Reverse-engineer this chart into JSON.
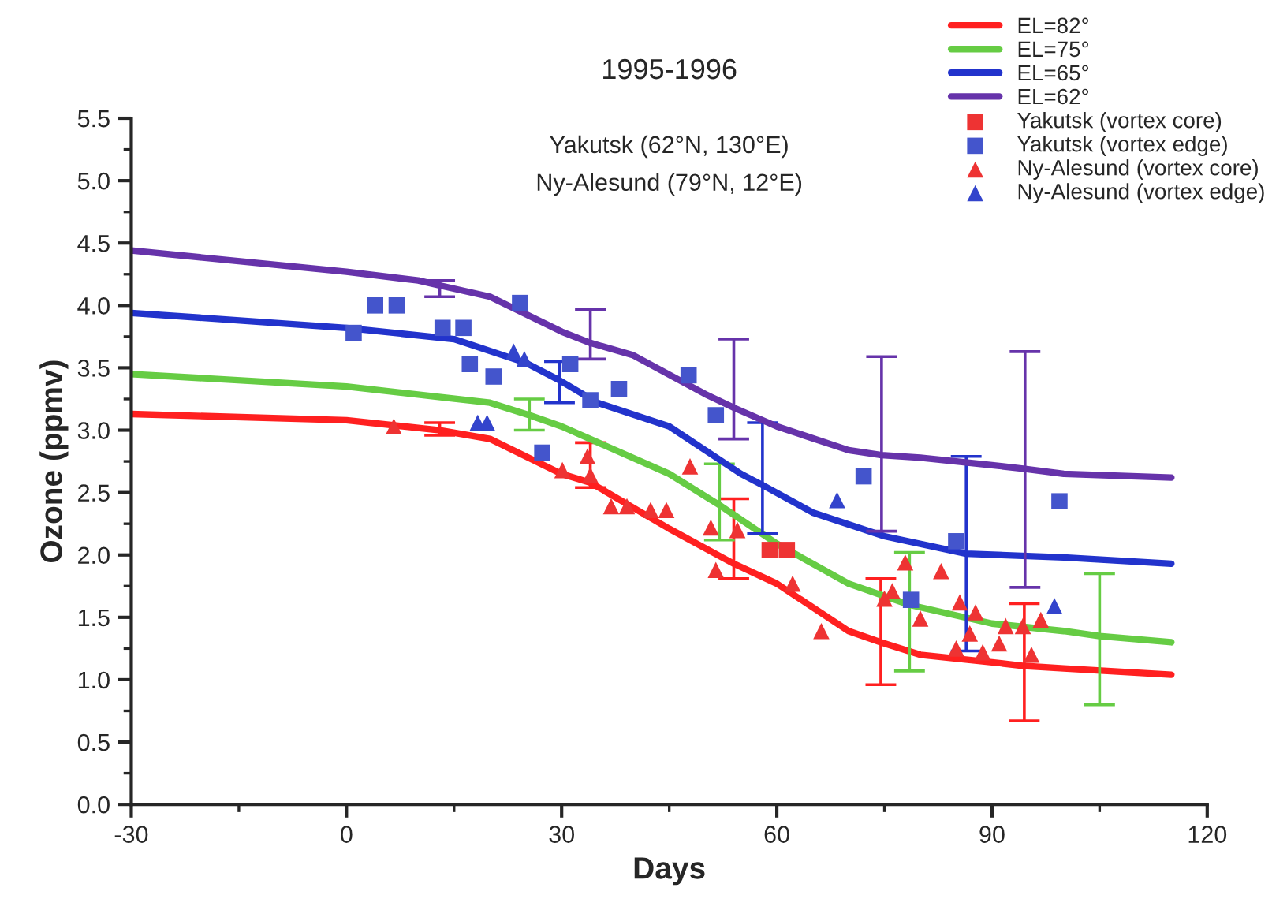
{
  "chart_data": {
    "type": "line",
    "title": "1995-1996",
    "xlabel": "Days",
    "ylabel": "Ozone (ppmv)",
    "annotations": [
      "Yakutsk (62°N, 130°E)",
      "Ny-Alesund (79°N, 12°E)"
    ],
    "xlim": [
      -30,
      120
    ],
    "xticks": [
      -30,
      0,
      30,
      60,
      90,
      120
    ],
    "ylim": [
      0,
      5.5
    ],
    "yticks": [
      {
        "value": 0,
        "label": "0.0"
      },
      {
        "value": 0.5,
        "label": "0.5"
      },
      {
        "value": 1,
        "label": "1.0"
      },
      {
        "value": 1.5,
        "label": "1.5"
      },
      {
        "value": 2,
        "label": "2.0"
      },
      {
        "value": 2.5,
        "label": "2.5"
      },
      {
        "value": 3,
        "label": "3.0"
      },
      {
        "value": 3.5,
        "label": "3.5"
      },
      {
        "value": 4,
        "label": "4.0"
      },
      {
        "value": 4.5,
        "label": "4.5"
      },
      {
        "value": 5,
        "label": "5.0"
      },
      {
        "value": 5.5,
        "label": "5.5"
      }
    ],
    "grid": false,
    "legend": "top right",
    "series": [
      {
        "name": "EL=82°",
        "color": "#ff2020",
        "x": [
          -30,
          0,
          13,
          20,
          30,
          34,
          45,
          54,
          60,
          70,
          74.5,
          80,
          90,
          94.5,
          100,
          115
        ],
        "values": [
          3.13,
          3.08,
          3.0,
          2.93,
          2.65,
          2.58,
          2.21,
          1.93,
          1.77,
          1.39,
          1.3,
          1.2,
          1.14,
          1.11,
          1.09,
          1.04
        ],
        "errors": [
          null,
          null,
          [
            2.96,
            3.06
          ],
          null,
          null,
          [
            2.54,
            2.9
          ],
          null,
          [
            1.81,
            2.45
          ],
          null,
          null,
          [
            0.96,
            1.81
          ],
          null,
          null,
          [
            0.67,
            1.61
          ],
          null,
          null
        ]
      },
      {
        "name": "EL=75°",
        "color": "#66cc44",
        "x": [
          -30,
          0,
          20,
          25.5,
          30,
          45,
          52,
          60,
          70,
          78.5,
          90,
          100,
          105,
          115
        ],
        "values": [
          3.45,
          3.35,
          3.22,
          3.12,
          3.03,
          2.65,
          2.4,
          2.09,
          1.77,
          1.6,
          1.45,
          1.39,
          1.35,
          1.3
        ],
        "errors": [
          null,
          null,
          null,
          [
            3.0,
            3.25
          ],
          null,
          null,
          [
            2.12,
            2.73
          ],
          null,
          null,
          [
            1.07,
            2.02
          ],
          null,
          null,
          [
            0.8,
            1.85
          ],
          null
        ]
      },
      {
        "name": "EL=65°",
        "color": "#2233cc",
        "x": [
          -30,
          0,
          15,
          25,
          29.7,
          35,
          45,
          55,
          58,
          65,
          75,
          86.4,
          100,
          115
        ],
        "values": [
          3.94,
          3.82,
          3.73,
          3.54,
          3.4,
          3.22,
          3.03,
          2.65,
          2.56,
          2.34,
          2.15,
          2.01,
          1.98,
          1.93
        ],
        "errors": [
          null,
          null,
          null,
          null,
          [
            3.22,
            3.55
          ],
          null,
          null,
          null,
          [
            2.17,
            3.06
          ],
          null,
          null,
          [
            1.23,
            2.79
          ],
          null,
          null
        ]
      },
      {
        "name": "EL=62°",
        "color": "#6633aa",
        "x": [
          -30,
          0,
          10,
          13,
          20,
          30,
          34,
          40,
          50,
          54,
          60,
          70,
          74.6,
          80,
          90,
          94.6,
          100,
          115
        ],
        "values": [
          4.44,
          4.27,
          4.2,
          4.16,
          4.07,
          3.79,
          3.7,
          3.6,
          3.29,
          3.18,
          3.03,
          2.84,
          2.8,
          2.78,
          2.72,
          2.69,
          2.65,
          2.62
        ],
        "errors": [
          null,
          null,
          null,
          [
            4.07,
            4.2
          ],
          null,
          null,
          [
            3.57,
            3.97
          ],
          null,
          null,
          [
            2.93,
            3.73
          ],
          null,
          null,
          [
            2.19,
            3.59
          ],
          null,
          null,
          [
            1.74,
            3.63
          ],
          null,
          null
        ]
      },
      {
        "name": "Yakutsk (vortex core)",
        "type": "scatter",
        "marker": "square",
        "color": "#ee3333",
        "x": [
          59,
          61.4
        ],
        "values": [
          2.04,
          2.04
        ]
      },
      {
        "name": "Yakutsk (vortex edge)",
        "type": "scatter",
        "marker": "square",
        "color": "#4455cc",
        "x": [
          1,
          4,
          7,
          13.4,
          16.3,
          17.2,
          20.5,
          24.2,
          27.3,
          31.2,
          34,
          38,
          47.7,
          51.5,
          72.1,
          78.7,
          85,
          99.4
        ],
        "values": [
          3.78,
          4.0,
          4.0,
          3.82,
          3.82,
          3.53,
          3.43,
          4.02,
          2.82,
          3.53,
          3.24,
          3.33,
          3.44,
          3.12,
          2.63,
          1.64,
          2.11,
          2.43
        ]
      },
      {
        "name": "Ny-Alesund (vortex core)",
        "type": "scatter",
        "marker": "triangle",
        "color": "#ee3333",
        "x": [
          6.6,
          30.1,
          33.6,
          34,
          36.9,
          39.1,
          42.4,
          44.6,
          47.9,
          50.8,
          51.5,
          54.5,
          62.2,
          66.2,
          75,
          76.1,
          77.9,
          80,
          82.9,
          85,
          85.5,
          86.9,
          87.7,
          88.7,
          91,
          91.9,
          94.3,
          95.5,
          96.8
        ],
        "values": [
          3.03,
          2.68,
          2.79,
          2.64,
          2.39,
          2.39,
          2.36,
          2.36,
          2.71,
          2.22,
          1.88,
          2.2,
          1.77,
          1.39,
          1.65,
          1.71,
          1.94,
          1.49,
          1.87,
          1.25,
          1.62,
          1.37,
          1.54,
          1.22,
          1.29,
          1.43,
          1.43,
          1.2,
          1.48
        ]
      },
      {
        "name": "Ny-Alesund (vortex edge)",
        "type": "scatter",
        "marker": "triangle",
        "color": "#3344cc",
        "x": [
          18.3,
          19.6,
          23.3,
          24.8,
          68.4,
          98.7
        ],
        "values": [
          3.06,
          3.06,
          3.63,
          3.57,
          2.44,
          1.59
        ]
      }
    ]
  }
}
